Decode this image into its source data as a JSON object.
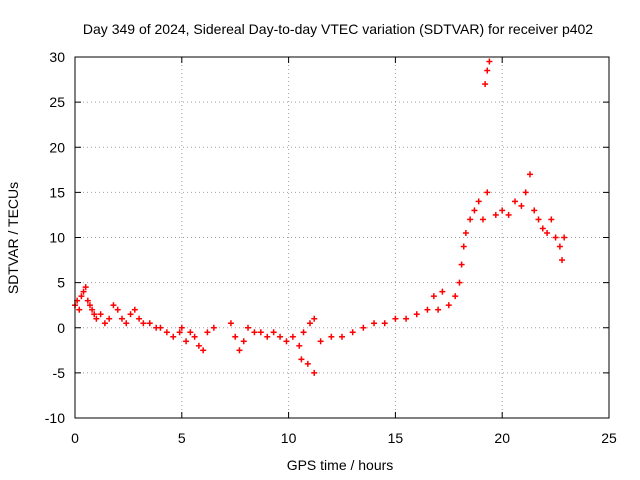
{
  "chart_data": {
    "type": "scatter",
    "title": "Day 349 of 2024, Sidereal Day-to-day VTEC variation (SDTVAR) for receiver p402",
    "xlabel": "GPS time / hours",
    "ylabel": "SDTVAR / TECUs",
    "xlim": [
      0,
      25
    ],
    "ylim": [
      -10,
      30
    ],
    "xticks": [
      "0",
      "5",
      "10",
      "15",
      "20",
      "25"
    ],
    "yticks": [
      "-10",
      "-5",
      "0",
      "5",
      "10",
      "15",
      "20",
      "25",
      "30"
    ],
    "grid": true,
    "marker_color": "#ff0000",
    "series": [
      {
        "name": "SDTVAR",
        "points": [
          [
            0.0,
            2.5
          ],
          [
            0.1,
            3.0
          ],
          [
            0.2,
            2.0
          ],
          [
            0.3,
            3.5
          ],
          [
            0.4,
            4.0
          ],
          [
            0.5,
            4.5
          ],
          [
            0.6,
            3.0
          ],
          [
            0.7,
            2.5
          ],
          [
            0.8,
            2.0
          ],
          [
            0.9,
            1.5
          ],
          [
            1.0,
            1.0
          ],
          [
            1.2,
            1.5
          ],
          [
            1.4,
            0.5
          ],
          [
            1.6,
            1.0
          ],
          [
            1.8,
            2.5
          ],
          [
            2.0,
            2.0
          ],
          [
            2.2,
            1.0
          ],
          [
            2.4,
            0.5
          ],
          [
            2.6,
            1.5
          ],
          [
            2.8,
            2.0
          ],
          [
            3.0,
            1.0
          ],
          [
            3.2,
            0.5
          ],
          [
            3.5,
            0.5
          ],
          [
            3.8,
            0.0
          ],
          [
            4.0,
            0.0
          ],
          [
            4.3,
            -0.5
          ],
          [
            4.6,
            -1.0
          ],
          [
            4.9,
            -0.5
          ],
          [
            5.0,
            0.0
          ],
          [
            5.2,
            -1.5
          ],
          [
            5.4,
            -0.5
          ],
          [
            5.6,
            -1.0
          ],
          [
            5.8,
            -2.0
          ],
          [
            6.0,
            -2.5
          ],
          [
            6.2,
            -0.5
          ],
          [
            6.5,
            0.0
          ],
          [
            7.3,
            0.5
          ],
          [
            7.5,
            -1.0
          ],
          [
            7.7,
            -2.5
          ],
          [
            7.9,
            -1.5
          ],
          [
            8.1,
            0.0
          ],
          [
            8.4,
            -0.5
          ],
          [
            8.7,
            -0.5
          ],
          [
            9.0,
            -1.0
          ],
          [
            9.3,
            -0.5
          ],
          [
            9.6,
            -1.0
          ],
          [
            9.9,
            -1.5
          ],
          [
            10.2,
            -1.0
          ],
          [
            10.5,
            -2.0
          ],
          [
            10.7,
            -0.5
          ],
          [
            11.0,
            0.5
          ],
          [
            11.2,
            1.0
          ],
          [
            10.6,
            -3.5
          ],
          [
            10.9,
            -4.0
          ],
          [
            11.2,
            -5.0
          ],
          [
            11.5,
            -1.5
          ],
          [
            12.0,
            -1.0
          ],
          [
            12.5,
            -1.0
          ],
          [
            13.0,
            -0.5
          ],
          [
            13.5,
            0.0
          ],
          [
            14.0,
            0.5
          ],
          [
            14.5,
            0.5
          ],
          [
            15.0,
            1.0
          ],
          [
            15.5,
            1.0
          ],
          [
            16.0,
            1.5
          ],
          [
            16.5,
            2.0
          ],
          [
            16.8,
            3.5
          ],
          [
            17.0,
            2.0
          ],
          [
            17.2,
            4.0
          ],
          [
            17.5,
            2.5
          ],
          [
            17.8,
            3.5
          ],
          [
            18.0,
            5.0
          ],
          [
            18.1,
            7.0
          ],
          [
            18.2,
            9.0
          ],
          [
            18.3,
            10.5
          ],
          [
            18.5,
            12.0
          ],
          [
            18.7,
            13.0
          ],
          [
            18.9,
            14.0
          ],
          [
            19.1,
            12.0
          ],
          [
            19.3,
            15.0
          ],
          [
            19.2,
            27.0
          ],
          [
            19.3,
            28.5
          ],
          [
            19.4,
            29.5
          ],
          [
            19.7,
            12.5
          ],
          [
            20.0,
            13.0
          ],
          [
            20.3,
            12.5
          ],
          [
            20.6,
            14.0
          ],
          [
            20.9,
            13.5
          ],
          [
            21.1,
            15.0
          ],
          [
            21.3,
            17.0
          ],
          [
            21.5,
            13.0
          ],
          [
            21.7,
            12.0
          ],
          [
            21.9,
            11.0
          ],
          [
            22.1,
            10.5
          ],
          [
            22.3,
            12.0
          ],
          [
            22.5,
            10.0
          ],
          [
            22.7,
            9.0
          ],
          [
            22.8,
            7.5
          ],
          [
            22.9,
            10.0
          ]
        ]
      }
    ]
  }
}
